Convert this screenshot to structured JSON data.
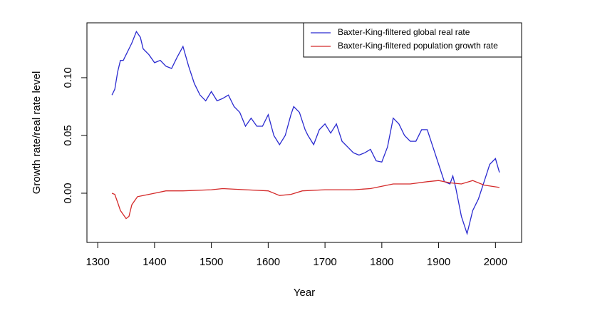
{
  "chart_data": {
    "type": "line",
    "xlabel": "Year",
    "ylabel": "Growth rate/real rate level",
    "xlim": [
      1281,
      2046
    ],
    "ylim": [
      -0.0426,
      0.1475
    ],
    "xticks": [
      1300,
      1400,
      1500,
      1600,
      1700,
      1800,
      1900,
      2000
    ],
    "yticks": [
      {
        "value": 0,
        "label": "0.00"
      },
      {
        "value": 0.05,
        "label": "0.05"
      },
      {
        "value": 0.1,
        "label": "0.10"
      }
    ],
    "grid": false,
    "legend": "topright",
    "series": [
      {
        "name": "Baxter-King-filtered global real rate",
        "color": "#2b2bd0",
        "x": [
          1325,
          1330,
          1335,
          1340,
          1345,
          1350,
          1355,
          1360,
          1368,
          1375,
          1380,
          1390,
          1400,
          1410,
          1420,
          1430,
          1440,
          1450,
          1460,
          1470,
          1480,
          1490,
          1500,
          1510,
          1520,
          1530,
          1540,
          1550,
          1560,
          1570,
          1580,
          1590,
          1600,
          1610,
          1620,
          1630,
          1640,
          1645,
          1655,
          1665,
          1670,
          1680,
          1690,
          1700,
          1710,
          1720,
          1730,
          1740,
          1750,
          1760,
          1770,
          1780,
          1790,
          1800,
          1810,
          1820,
          1830,
          1840,
          1850,
          1860,
          1870,
          1880,
          1890,
          1900,
          1910,
          1920,
          1925,
          1930,
          1940,
          1950,
          1960,
          1970,
          1980,
          1990,
          2000,
          2007
        ],
        "values": [
          0.085,
          0.09,
          0.105,
          0.115,
          0.115,
          0.12,
          0.125,
          0.13,
          0.14,
          0.135,
          0.125,
          0.12,
          0.113,
          0.115,
          0.11,
          0.108,
          0.118,
          0.127,
          0.11,
          0.095,
          0.085,
          0.08,
          0.088,
          0.08,
          0.082,
          0.085,
          0.075,
          0.07,
          0.058,
          0.065,
          0.058,
          0.058,
          0.068,
          0.05,
          0.042,
          0.05,
          0.068,
          0.075,
          0.07,
          0.055,
          0.05,
          0.042,
          0.055,
          0.06,
          0.052,
          0.06,
          0.045,
          0.04,
          0.035,
          0.033,
          0.035,
          0.038,
          0.028,
          0.027,
          0.04,
          0.065,
          0.06,
          0.05,
          0.045,
          0.045,
          0.055,
          0.055,
          0.04,
          0.025,
          0.01,
          0.008,
          0.015,
          0.005,
          -0.02,
          -0.035,
          -0.015,
          -0.005,
          0.01,
          0.025,
          0.03,
          0.018
        ]
      },
      {
        "name": "Baxter-King-filtered population growth rate",
        "color": "#d42a2a",
        "x": [
          1325,
          1330,
          1335,
          1340,
          1350,
          1355,
          1360,
          1370,
          1380,
          1400,
          1420,
          1450,
          1500,
          1520,
          1560,
          1600,
          1620,
          1640,
          1660,
          1700,
          1750,
          1780,
          1800,
          1820,
          1850,
          1880,
          1900,
          1920,
          1940,
          1960,
          1980,
          2007
        ],
        "values": [
          0.0,
          -0.001,
          -0.008,
          -0.015,
          -0.022,
          -0.02,
          -0.01,
          -0.003,
          -0.002,
          0.0,
          0.002,
          0.002,
          0.003,
          0.004,
          0.003,
          0.002,
          -0.002,
          -0.001,
          0.002,
          0.003,
          0.003,
          0.004,
          0.006,
          0.008,
          0.008,
          0.01,
          0.011,
          0.009,
          0.008,
          0.011,
          0.007,
          0.005
        ]
      }
    ]
  }
}
